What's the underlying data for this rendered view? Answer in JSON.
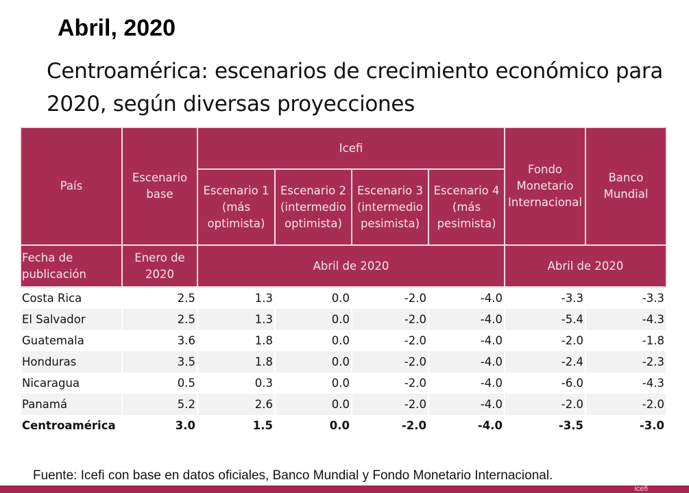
{
  "header": {
    "date_title": "Abril, 2020",
    "main_title": "Centroamérica: escenarios de crecimiento económico para 2020, según diversas proyecciones"
  },
  "table": {
    "header": {
      "pais": "País",
      "escenario_base": "Escenario base",
      "icefi_group": "Icefi",
      "escenario_1": "Escenario 1 (más optimista)",
      "escenario_2": "Escenario 2 (intermedio optimista)",
      "escenario_3": "Escenario 3 (intermedio pesimista)",
      "escenario_4": "Escenario 4 (más pesimista)",
      "fmi": "Fondo Monetario Internacional",
      "banco_mundial": "Banco Mundial"
    },
    "publication_row": {
      "label": "Fecha de publicación",
      "base_date": "Enero de 2020",
      "icefi_date": "Abril de 2020",
      "intl_date": "Abril de 2020"
    },
    "rows": [
      {
        "country": "Costa Rica",
        "base": "2.5",
        "e1": "1.3",
        "e2": "0.0",
        "e3": "-2.0",
        "e4": "-4.0",
        "fmi": "-3.3",
        "bm": "-3.3"
      },
      {
        "country": "El Salvador",
        "base": "2.5",
        "e1": "1.3",
        "e2": "0.0",
        "e3": "-2.0",
        "e4": "-4.0",
        "fmi": "-5.4",
        "bm": "-4.3"
      },
      {
        "country": "Guatemala",
        "base": "3.6",
        "e1": "1.8",
        "e2": "0.0",
        "e3": "-2.0",
        "e4": "-4.0",
        "fmi": "-2.0",
        "bm": "-1.8"
      },
      {
        "country": "Honduras",
        "base": "3.5",
        "e1": "1.8",
        "e2": "0.0",
        "e3": "-2.0",
        "e4": "-4.0",
        "fmi": "-2.4",
        "bm": "-2.3"
      },
      {
        "country": "Nicaragua",
        "base": "0.5",
        "e1": "0.3",
        "e2": "0.0",
        "e3": "-2.0",
        "e4": "-4.0",
        "fmi": "-6.0",
        "bm": "-4.3"
      },
      {
        "country": "Panamá",
        "base": "5.2",
        "e1": "2.6",
        "e2": "0.0",
        "e3": "-2.0",
        "e4": "-4.0",
        "fmi": "-2.0",
        "bm": "-2.0"
      }
    ],
    "total": {
      "country": "Centroamérica",
      "base": "3.0",
      "e1": "1.5",
      "e2": "0.0",
      "e3": "-2.0",
      "e4": "-4.0",
      "fmi": "-3.5",
      "bm": "-3.0"
    }
  },
  "footer": {
    "source": "Fuente: Icefi con base en datos oficiales, Banco Mundial y Fondo Monetario Internacional.",
    "logo_text": "icefi"
  },
  "colors": {
    "header_bg": "#a82d55",
    "alt_row_bg": "#f2f2f2",
    "bottom_bar": "#a8244f"
  }
}
